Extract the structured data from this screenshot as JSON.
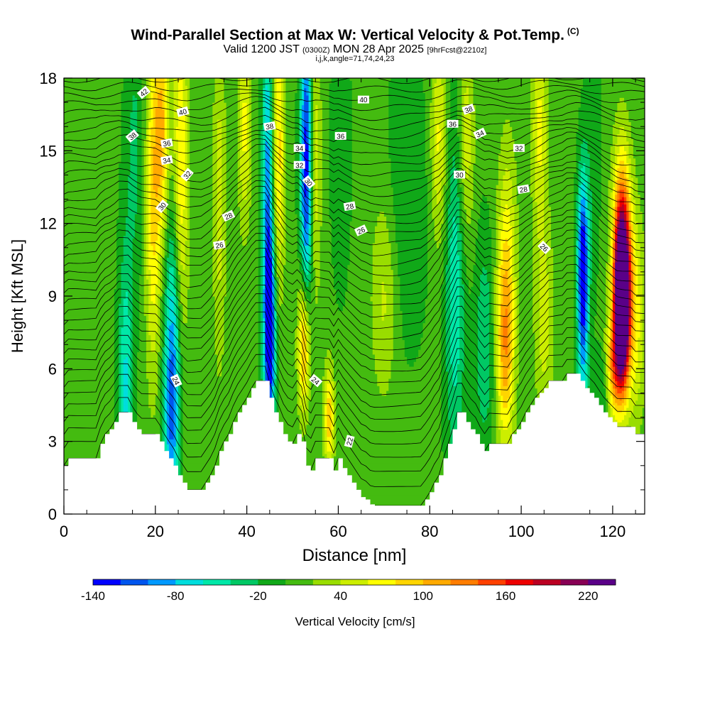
{
  "header": {
    "title": "Wind-Parallel Section at Max W: Vertical Velocity & Pot.Temp.",
    "copyright": "(C)",
    "valid_prefix": "Valid 1200 JST",
    "valid_utc": "(0300Z)",
    "valid_date": "MON 28 Apr 2025",
    "forecast": "[9hrFcst@2210z]",
    "grid_info": "i,j,k,angle=71,74,24,23"
  },
  "chart_data": {
    "type": "heatmap",
    "xlabel": "Distance [nm]",
    "ylabel": "Height [Kft MSL]",
    "xlim": [
      0,
      127
    ],
    "ylim": [
      0,
      18
    ],
    "x_ticks": [
      "0",
      "20",
      "40",
      "60",
      "80",
      "100",
      "120"
    ],
    "y_ticks": [
      "0",
      "3",
      "6",
      "9",
      "12",
      "15",
      "18"
    ],
    "colorbar": {
      "label": "Vertical Velocity [cm/s]",
      "tick_labels": [
        "-140",
        "-80",
        "-20",
        "40",
        "100",
        "160",
        "220"
      ],
      "colors": [
        "#0000ff",
        "#0055ee",
        "#0099ff",
        "#00dddd",
        "#00e8a8",
        "#00c864",
        "#10a818",
        "#44bb10",
        "#99dd00",
        "#ccee00",
        "#ffff00",
        "#ffd500",
        "#ffaa00",
        "#ff7d00",
        "#ff4000",
        "#ee0000",
        "#bb0022",
        "#880055",
        "#5a0088"
      ],
      "min": -140,
      "step": 20
    },
    "background_w": 5,
    "w_features": [
      {
        "x": 13.5,
        "z": 5.0,
        "w": -70,
        "sx": 1.1,
        "sz": 4.0
      },
      {
        "x": 15.5,
        "z": 15.0,
        "w": -30,
        "sx": 1.5,
        "sz": 4.0
      },
      {
        "x": 19.5,
        "z": 13.0,
        "w": 80,
        "sx": 1.2,
        "sz": 5.0
      },
      {
        "x": 21.5,
        "z": 16.0,
        "w": 90,
        "sx": 1.1,
        "sz": 3.0
      },
      {
        "x": 23.5,
        "z": 4.0,
        "w": -100,
        "sx": 1.2,
        "sz": 3.0
      },
      {
        "x": 24.0,
        "z": 9.0,
        "w": -60,
        "sx": 1.3,
        "sz": 3.5
      },
      {
        "x": 25.5,
        "z": 14.0,
        "w": 80,
        "sx": 1.2,
        "sz": 5.0
      },
      {
        "x": 34.0,
        "z": 13.0,
        "w": 45,
        "sx": 1.0,
        "sz": 5.0
      },
      {
        "x": 39.5,
        "z": 16.0,
        "w": 60,
        "sx": 1.0,
        "sz": 3.0
      },
      {
        "x": 45.0,
        "z": 7.5,
        "w": -150,
        "sx": 0.9,
        "sz": 3.0
      },
      {
        "x": 44.5,
        "z": 14.0,
        "w": -90,
        "sx": 0.8,
        "sz": 5.0
      },
      {
        "x": 47.0,
        "z": 15.0,
        "w": 80,
        "sx": 0.9,
        "sz": 4.0
      },
      {
        "x": 52.5,
        "z": 7.0,
        "w": 120,
        "sx": 0.9,
        "sz": 2.0
      },
      {
        "x": 53.0,
        "z": 14.5,
        "w": -140,
        "sx": 0.9,
        "sz": 4.5
      },
      {
        "x": 55.0,
        "z": 14.5,
        "w": 50,
        "sx": 0.9,
        "sz": 4.0
      },
      {
        "x": 58.0,
        "z": 4.0,
        "w": 90,
        "sx": 0.8,
        "sz": 1.5
      },
      {
        "x": 60.5,
        "z": 15.0,
        "w": -20,
        "sx": 1.5,
        "sz": 4.0
      },
      {
        "x": 70.0,
        "z": 9.0,
        "w": 40,
        "sx": 2.0,
        "sz": 3.0
      },
      {
        "x": 75.0,
        "z": 13.0,
        "w": -25,
        "sx": 3.0,
        "sz": 4.0
      },
      {
        "x": 82.0,
        "z": 15.5,
        "w": 60,
        "sx": 1.2,
        "sz": 3.0
      },
      {
        "x": 85.5,
        "z": 9.0,
        "w": -60,
        "sx": 1.5,
        "sz": 5.0
      },
      {
        "x": 88.0,
        "z": 15.5,
        "w": 50,
        "sx": 1.2,
        "sz": 3.0
      },
      {
        "x": 92.0,
        "z": 7.0,
        "w": -45,
        "sx": 1.5,
        "sz": 3.0
      },
      {
        "x": 96.5,
        "z": 7.0,
        "w": 110,
        "sx": 1.4,
        "sz": 3.0
      },
      {
        "x": 97.0,
        "z": 12.0,
        "w": 40,
        "sx": 1.5,
        "sz": 3.0
      },
      {
        "x": 105.0,
        "z": 8.0,
        "w": 45,
        "sx": 1.5,
        "sz": 3.0
      },
      {
        "x": 104.0,
        "z": 16.0,
        "w": 60,
        "sx": 1.2,
        "sz": 3.0
      },
      {
        "x": 113.5,
        "z": 10.5,
        "w": -130,
        "sx": 0.8,
        "sz": 2.5
      },
      {
        "x": 113.5,
        "z": 7.0,
        "w": -60,
        "sx": 0.9,
        "sz": 3.0
      },
      {
        "x": 115.5,
        "z": 15.0,
        "w": -20,
        "sx": 1.2,
        "sz": 4.0
      },
      {
        "x": 122.0,
        "z": 8.5,
        "w": 260,
        "sx": 1.1,
        "sz": 2.2
      },
      {
        "x": 122.0,
        "z": 10.5,
        "w": 180,
        "sx": 1.4,
        "sz": 3.0
      },
      {
        "x": 120.0,
        "z": 6.0,
        "w": 90,
        "sx": 1.3,
        "sz": 1.5
      },
      {
        "x": 125.0,
        "z": 8.0,
        "w": 60,
        "sx": 1.5,
        "sz": 3.0
      },
      {
        "x": 118.0,
        "z": 5.0,
        "w": -40,
        "sx": 1.0,
        "sz": 1.5
      }
    ],
    "terrain": [
      [
        0,
        2.0
      ],
      [
        1,
        2.3
      ],
      [
        7,
        2.3
      ],
      [
        8,
        2.9
      ],
      [
        9,
        3.3
      ],
      [
        10,
        3.5
      ],
      [
        11,
        3.8
      ],
      [
        12,
        4.2
      ],
      [
        14,
        4.2
      ],
      [
        15,
        3.8
      ],
      [
        16,
        3.5
      ],
      [
        17,
        3.3
      ],
      [
        20,
        3.3
      ],
      [
        21,
        3.0
      ],
      [
        22,
        2.6
      ],
      [
        23,
        2.3
      ],
      [
        24,
        2.0
      ],
      [
        25,
        1.6
      ],
      [
        26,
        1.3
      ],
      [
        27,
        1.0
      ],
      [
        30,
        1.0
      ],
      [
        31,
        1.3
      ],
      [
        32,
        1.6
      ],
      [
        33,
        2.0
      ],
      [
        34,
        2.6
      ],
      [
        35,
        3.0
      ],
      [
        36,
        3.3
      ],
      [
        37,
        3.8
      ],
      [
        38,
        4.2
      ],
      [
        39,
        4.5
      ],
      [
        40,
        4.8
      ],
      [
        41,
        5.2
      ],
      [
        42,
        5.5
      ],
      [
        44,
        5.5
      ],
      [
        45,
        4.8
      ],
      [
        46,
        4.2
      ],
      [
        47,
        3.8
      ],
      [
        48,
        3.3
      ],
      [
        49,
        3.0
      ],
      [
        50,
        2.9
      ],
      [
        51,
        3.3
      ],
      [
        52,
        3.0
      ],
      [
        53,
        2.0
      ],
      [
        54,
        1.8
      ],
      [
        55,
        2.3
      ],
      [
        58,
        2.3
      ],
      [
        59,
        1.8
      ],
      [
        60,
        2.3
      ],
      [
        61,
        1.9
      ],
      [
        62,
        1.6
      ],
      [
        63,
        1.3
      ],
      [
        64,
        1.0
      ],
      [
        65,
        0.7
      ],
      [
        66,
        0.6
      ],
      [
        67,
        0.4
      ],
      [
        68,
        0.35
      ],
      [
        78,
        0.35
      ],
      [
        79,
        0.6
      ],
      [
        80,
        0.9
      ],
      [
        81,
        1.3
      ],
      [
        82,
        1.6
      ],
      [
        83,
        2.3
      ],
      [
        84,
        2.9
      ],
      [
        85,
        3.5
      ],
      [
        86,
        4.2
      ],
      [
        87,
        4.2
      ],
      [
        88,
        3.8
      ],
      [
        89,
        3.5
      ],
      [
        90,
        3.3
      ],
      [
        91,
        2.9
      ],
      [
        92,
        2.6
      ],
      [
        93,
        2.9
      ],
      [
        97,
        2.9
      ],
      [
        98,
        3.3
      ],
      [
        99,
        3.5
      ],
      [
        100,
        3.8
      ],
      [
        101,
        4.2
      ],
      [
        102,
        4.5
      ],
      [
        103,
        4.8
      ],
      [
        104,
        5.0
      ],
      [
        105,
        5.2
      ],
      [
        106,
        5.5
      ],
      [
        109,
        5.5
      ],
      [
        110,
        5.8
      ],
      [
        112,
        5.8
      ],
      [
        113,
        5.5
      ],
      [
        114,
        5.2
      ],
      [
        115,
        5.0
      ],
      [
        116,
        4.8
      ],
      [
        117,
        4.5
      ],
      [
        118,
        4.2
      ],
      [
        119,
        4.0
      ],
      [
        120,
        3.8
      ],
      [
        121,
        3.6
      ],
      [
        124,
        3.6
      ],
      [
        125,
        3.3
      ],
      [
        127,
        3.3
      ]
    ],
    "theta": {
      "start": 22,
      "step": 0.5,
      "count": 41,
      "top": 18.3,
      "peaks": [
        {
          "x": 44,
          "a": 0.6,
          "s": 6
        },
        {
          "x": 87,
          "a": 0.6,
          "s": 6
        },
        {
          "x": 112,
          "a": 0.5,
          "s": 5
        }
      ]
    },
    "contour_labels": [
      {
        "text": "42",
        "x": 17.5,
        "z": 17.4,
        "angle": -40
      },
      {
        "text": "40",
        "x": 26,
        "z": 16.6,
        "angle": -15
      },
      {
        "text": "38",
        "x": 15,
        "z": 15.6,
        "angle": -40
      },
      {
        "text": "36",
        "x": 22.5,
        "z": 15.3,
        "angle": -10
      },
      {
        "text": "34",
        "x": 22.5,
        "z": 14.6,
        "angle": -10
      },
      {
        "text": "32",
        "x": 27,
        "z": 14.0,
        "angle": -50
      },
      {
        "text": "30",
        "x": 21.5,
        "z": 12.7,
        "angle": -50
      },
      {
        "text": "28",
        "x": 36,
        "z": 12.3,
        "angle": -25
      },
      {
        "text": "26",
        "x": 34,
        "z": 11.1,
        "angle": -10
      },
      {
        "text": "24",
        "x": 24.5,
        "z": 5.5,
        "angle": 65
      },
      {
        "text": "38",
        "x": 45,
        "z": 16.0,
        "angle": -10
      },
      {
        "text": "34",
        "x": 51.5,
        "z": 15.1,
        "angle": 0
      },
      {
        "text": "32",
        "x": 51.5,
        "z": 14.4,
        "angle": 0
      },
      {
        "text": "30",
        "x": 53.5,
        "z": 13.7,
        "angle": 50
      },
      {
        "text": "36",
        "x": 60.5,
        "z": 15.6,
        "angle": 0
      },
      {
        "text": "40",
        "x": 65.5,
        "z": 17.1,
        "angle": 0
      },
      {
        "text": "28",
        "x": 62.5,
        "z": 12.7,
        "angle": -10
      },
      {
        "text": "26",
        "x": 65,
        "z": 11.7,
        "angle": -25
      },
      {
        "text": "24",
        "x": 55,
        "z": 5.5,
        "angle": 40
      },
      {
        "text": "22",
        "x": 62.5,
        "z": 3.0,
        "angle": -75
      },
      {
        "text": "38",
        "x": 88.5,
        "z": 16.7,
        "angle": -20
      },
      {
        "text": "36",
        "x": 85,
        "z": 16.1,
        "angle": 0
      },
      {
        "text": "34",
        "x": 91,
        "z": 15.7,
        "angle": -25
      },
      {
        "text": "32",
        "x": 99.5,
        "z": 15.1,
        "angle": 0
      },
      {
        "text": "30",
        "x": 86.5,
        "z": 14.0,
        "angle": 0
      },
      {
        "text": "28",
        "x": 100.5,
        "z": 13.4,
        "angle": -10
      },
      {
        "text": "26",
        "x": 105,
        "z": 11.0,
        "angle": 45
      }
    ]
  }
}
